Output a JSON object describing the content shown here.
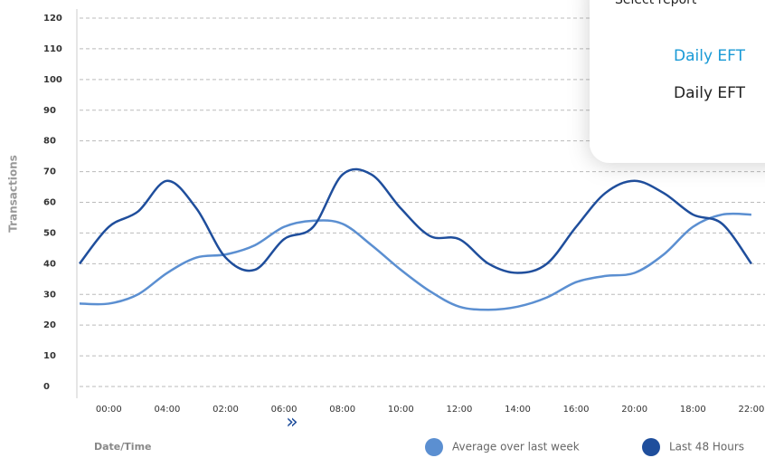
{
  "chart_data": {
    "type": "line",
    "ylabel": "Transactions",
    "xlabel": "Date/Time",
    "categories": [
      null,
      "00:00",
      null,
      "04:00",
      null,
      "02:00",
      null,
      "06:00",
      null,
      "08:00",
      null,
      "10:00",
      null,
      "12:00",
      null,
      "14:00",
      null,
      "16:00",
      null,
      "20:00",
      null,
      "18:00",
      null,
      "22:00"
    ],
    "series": [
      {
        "name": "Average over last week",
        "color": "#5b8fd1",
        "values": [
          27,
          27,
          30,
          37,
          42,
          43,
          46,
          52,
          54,
          53,
          46,
          38,
          31,
          26,
          25,
          26,
          29,
          34,
          36,
          37,
          43,
          52,
          56,
          56
        ]
      },
      {
        "name": "Last 48 Hours",
        "color": "#1f4e9c",
        "values": [
          40,
          52,
          57,
          67,
          58,
          42,
          38,
          48,
          52,
          69,
          69,
          58,
          49,
          48,
          40,
          37,
          40,
          52,
          63,
          67,
          63,
          56,
          53,
          40
        ]
      }
    ],
    "ylim": [
      0,
      120
    ],
    "yticks": [
      0,
      10,
      20,
      30,
      40,
      50,
      60,
      70,
      80,
      90,
      100,
      110,
      120
    ],
    "grid": true
  },
  "report_menu": {
    "title": "Select report",
    "items": [
      "Daily EFT",
      "Daily EFT"
    ]
  }
}
